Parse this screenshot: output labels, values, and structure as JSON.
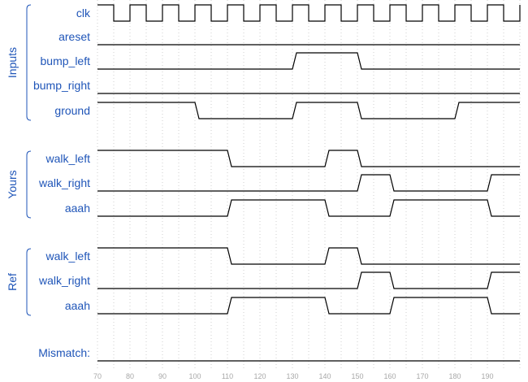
{
  "time_axis": {
    "start": 70,
    "end": 200,
    "tick_step": 10,
    "ticks": [
      "70",
      "80",
      "90",
      "100",
      "110",
      "120",
      "130",
      "140",
      "150",
      "160",
      "170",
      "180",
      "190"
    ]
  },
  "groups": [
    {
      "name": "Inputs",
      "signals": [
        {
          "id": "inputs-clk",
          "name": "clk",
          "type": "clock",
          "period": 10,
          "high_first_until": 75
        },
        {
          "id": "inputs-areset",
          "name": "areset",
          "type": "bit",
          "initial": 0,
          "transitions": []
        },
        {
          "id": "inputs-bump-left",
          "name": "bump_left",
          "type": "bit",
          "initial": 0,
          "transitions": [
            130,
            150
          ]
        },
        {
          "id": "inputs-bump-right",
          "name": "bump_right",
          "type": "bit",
          "initial": 0,
          "transitions": []
        },
        {
          "id": "inputs-ground",
          "name": "ground",
          "type": "bit",
          "initial": 1,
          "transitions": [
            100,
            130,
            150,
            180
          ]
        }
      ]
    },
    {
      "name": "Yours",
      "signals": [
        {
          "id": "yours-walk-left",
          "name": "walk_left",
          "type": "bit",
          "initial": 1,
          "transitions": [
            110,
            140,
            150
          ]
        },
        {
          "id": "yours-walk-right",
          "name": "walk_right",
          "type": "bit",
          "initial": 0,
          "transitions": [
            150,
            160,
            190
          ]
        },
        {
          "id": "yours-aaah",
          "name": "aaah",
          "type": "bit",
          "initial": 0,
          "transitions": [
            110,
            140,
            160,
            190
          ]
        }
      ]
    },
    {
      "name": "Ref",
      "signals": [
        {
          "id": "ref-walk-left",
          "name": "walk_left",
          "type": "bit",
          "initial": 1,
          "transitions": [
            110,
            140,
            150
          ]
        },
        {
          "id": "ref-walk-right",
          "name": "walk_right",
          "type": "bit",
          "initial": 0,
          "transitions": [
            150,
            160,
            190
          ]
        },
        {
          "id": "ref-aaah",
          "name": "aaah",
          "type": "bit",
          "initial": 0,
          "transitions": [
            110,
            140,
            160,
            190
          ]
        }
      ]
    }
  ],
  "mismatch": {
    "id": "mismatch",
    "name": "Mismatch:",
    "type": "bit",
    "initial": 0,
    "transitions": []
  }
}
